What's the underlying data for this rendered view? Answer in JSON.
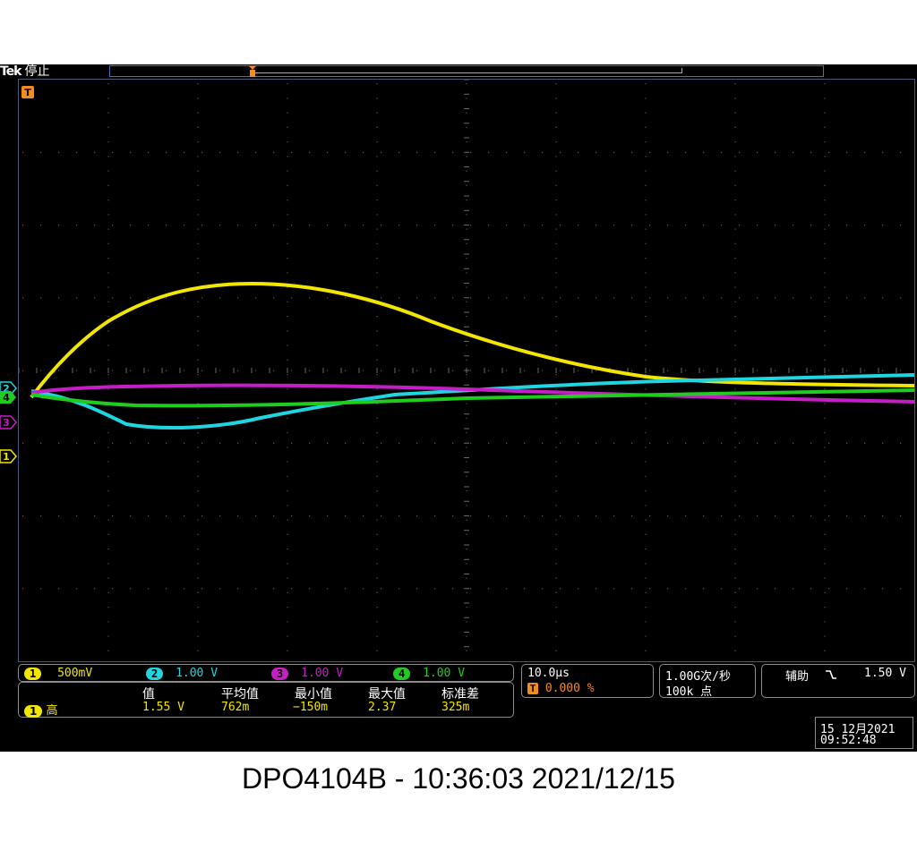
{
  "header": {
    "brand": "Tek",
    "acq_state": "停止"
  },
  "channels": [
    {
      "num": "1",
      "scale": "500mV",
      "color": "#f2e500"
    },
    {
      "num": "2",
      "scale": "1.00 V",
      "color": "#1fd6e0"
    },
    {
      "num": "3",
      "scale": "1.00 V",
      "color": "#c61ec6"
    },
    {
      "num": "4",
      "scale": "1.00 V",
      "color": "#1fcc1f"
    }
  ],
  "measurement": {
    "headers": [
      "值",
      "平均值",
      "最小值",
      "最大值",
      "标准差"
    ],
    "source": "1",
    "type": "高",
    "values": [
      "1.55 V",
      "762m",
      "−150m",
      "2.37",
      "325m"
    ]
  },
  "timebase": {
    "scale": "10.0µs",
    "trigger_marker": "T",
    "trigger_pos": "0.000 %"
  },
  "acquisition": {
    "rate": "1.00G次/秒",
    "points": "100k 点"
  },
  "trigger": {
    "source": "辅助",
    "slope_icon": "falling-edge-icon",
    "level": "1.50 V"
  },
  "datetime": {
    "date": "15 12月2021",
    "time": "09:52:48"
  },
  "caption": "DPO4104B - 10:36:03   2021/12/15"
}
